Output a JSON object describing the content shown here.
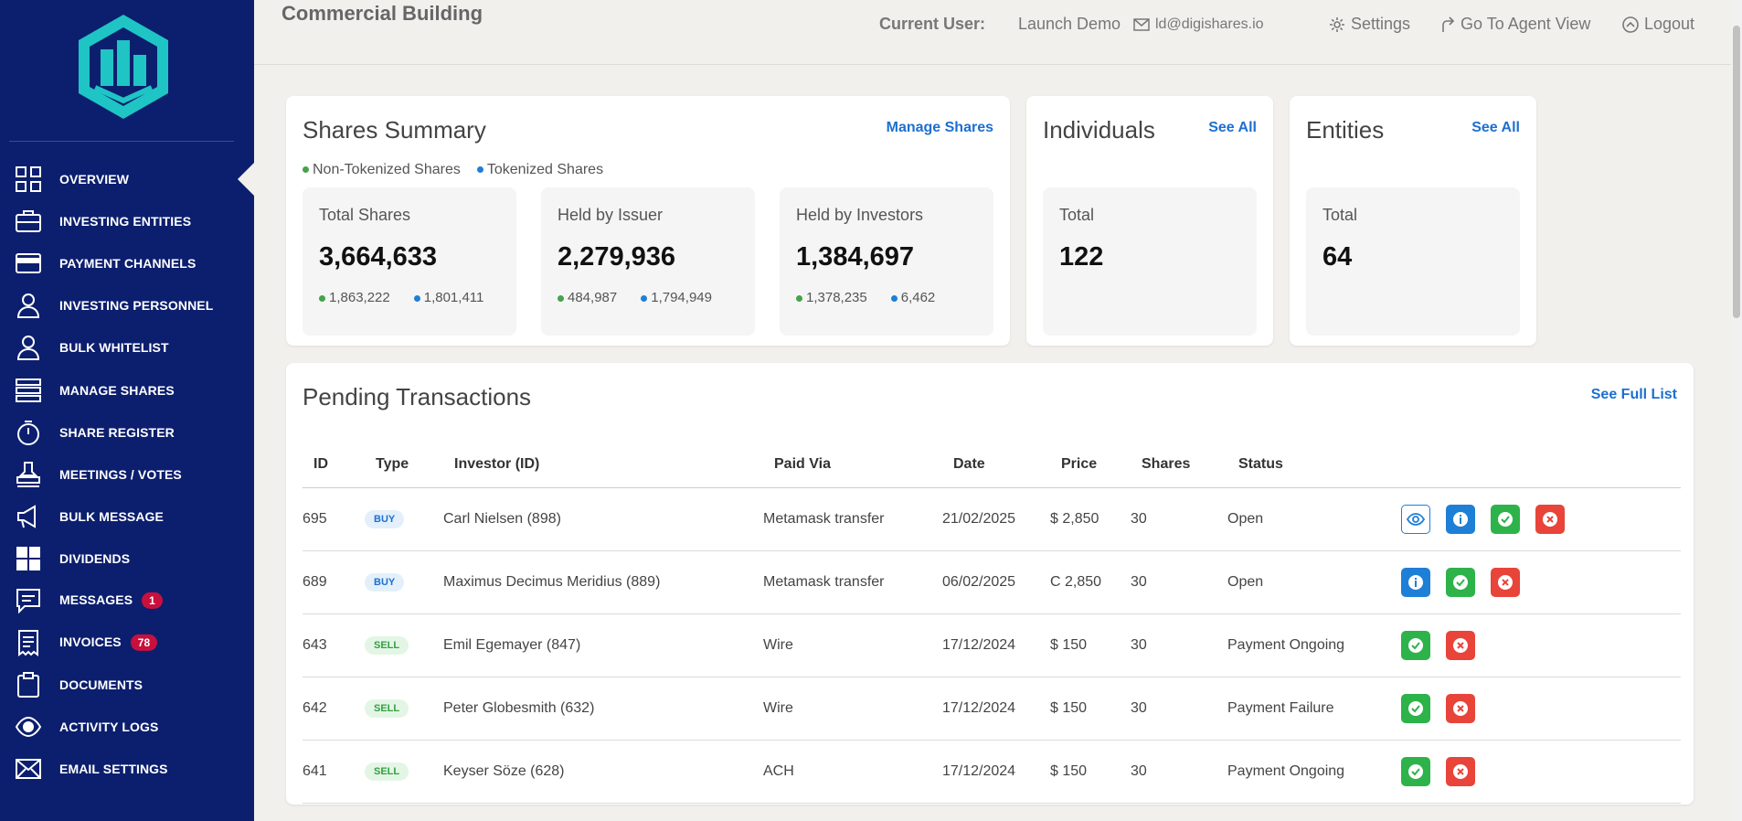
{
  "header": {
    "title": "Commercial Building",
    "current_user_label": "Current User:",
    "user_name": "Launch Demo",
    "email": "ld@digishares.io",
    "settings": "Settings",
    "agent_view": "Go To Agent View",
    "logout": "Logout"
  },
  "sidebar": {
    "items": [
      {
        "label": "OVERVIEW",
        "icon": "grid-icon"
      },
      {
        "label": "INVESTING ENTITIES",
        "icon": "briefcase-icon"
      },
      {
        "label": "PAYMENT CHANNELS",
        "icon": "credit-card-icon"
      },
      {
        "label": "INVESTING PERSONNEL",
        "icon": "user-icon"
      },
      {
        "label": "BULK WHITELIST",
        "icon": "user-icon"
      },
      {
        "label": "MANAGE SHARES",
        "icon": "list-icon"
      },
      {
        "label": "SHARE REGISTER",
        "icon": "stopwatch-icon"
      },
      {
        "label": "MEETINGS / VOTES",
        "icon": "stamp-icon"
      },
      {
        "label": "BULK MESSAGE",
        "icon": "megaphone-icon"
      },
      {
        "label": "DIVIDENDS",
        "icon": "tiles-icon"
      },
      {
        "label": "MESSAGES",
        "icon": "chat-icon",
        "badge": "1"
      },
      {
        "label": "INVOICES",
        "icon": "receipt-icon",
        "badge": "78"
      },
      {
        "label": "DOCUMENTS",
        "icon": "clipboard-icon"
      },
      {
        "label": "ACTIVITY LOGS",
        "icon": "eye-icon"
      },
      {
        "label": "EMAIL SETTINGS",
        "icon": "mail-icon"
      }
    ]
  },
  "shares_summary": {
    "title": "Shares Summary",
    "link": "Manage Shares",
    "legend_non_tokenized": "Non-Tokenized Shares",
    "legend_tokenized": "Tokenized Shares",
    "boxes": [
      {
        "label": "Total Shares",
        "value": "3,664,633",
        "non_tokenized": "1,863,222",
        "tokenized": "1,801,411"
      },
      {
        "label": "Held by Issuer",
        "value": "2,279,936",
        "non_tokenized": "484,987",
        "tokenized": "1,794,949"
      },
      {
        "label": "Held by Investors",
        "value": "1,384,697",
        "non_tokenized": "1,378,235",
        "tokenized": "6,462"
      }
    ]
  },
  "individuals": {
    "title": "Individuals",
    "link": "See All",
    "label": "Total",
    "value": "122"
  },
  "entities": {
    "title": "Entities",
    "link": "See All",
    "label": "Total",
    "value": "64"
  },
  "pending": {
    "title": "Pending Transactions",
    "link": "See Full List",
    "columns": [
      "ID",
      "Type",
      "Investor (ID)",
      "Paid Via",
      "Date",
      "Price",
      "Shares",
      "Status"
    ],
    "rows": [
      {
        "id": "695",
        "type": "BUY",
        "investor": "Carl Nielsen (898)",
        "paid_via": "Metamask transfer",
        "date": "21/02/2025",
        "price": "$ 2,850",
        "shares": "30",
        "status": "Open",
        "actions": [
          "view",
          "info",
          "ok",
          "no"
        ]
      },
      {
        "id": "689",
        "type": "BUY",
        "investor": "Maximus Decimus Meridius (889)",
        "paid_via": "Metamask transfer",
        "date": "06/02/2025",
        "price": "C 2,850",
        "shares": "30",
        "status": "Open",
        "actions": [
          "info",
          "ok",
          "no"
        ]
      },
      {
        "id": "643",
        "type": "SELL",
        "investor": "Emil Egemayer (847)",
        "paid_via": "Wire",
        "date": "17/12/2024",
        "price": "$ 150",
        "shares": "30",
        "status": "Payment Ongoing",
        "actions": [
          "ok",
          "no"
        ]
      },
      {
        "id": "642",
        "type": "SELL",
        "investor": "Peter Globesmith (632)",
        "paid_via": "Wire",
        "date": "17/12/2024",
        "price": "$ 150",
        "shares": "30",
        "status": "Payment Failure",
        "actions": [
          "ok",
          "no"
        ]
      },
      {
        "id": "641",
        "type": "SELL",
        "investor": "Keyser Söze (628)",
        "paid_via": "ACH",
        "date": "17/12/2024",
        "price": "$ 150",
        "shares": "30",
        "status": "Payment Ongoing",
        "actions": [
          "ok",
          "no"
        ]
      }
    ]
  },
  "colors": {
    "sidebar": "#0c1f6e",
    "accent": "#1e6fd0",
    "green": "#2db34a",
    "red": "#e8443a",
    "logo": "#1fc4c4"
  }
}
